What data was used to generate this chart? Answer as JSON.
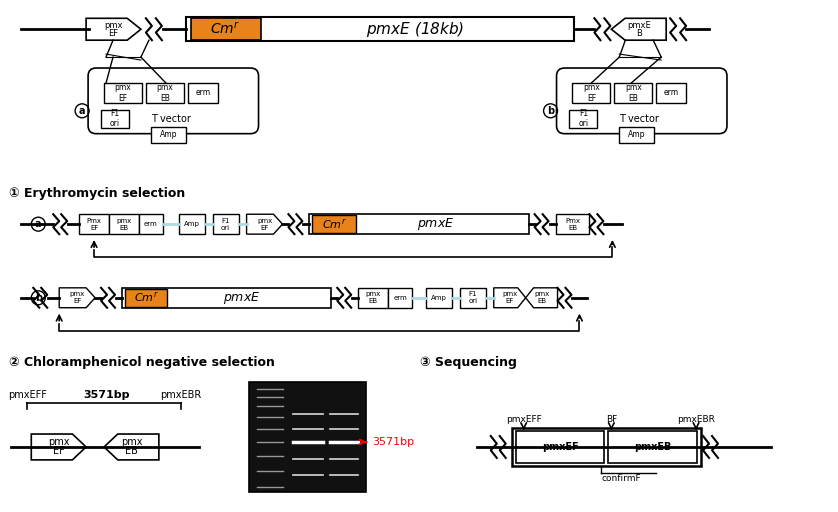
{
  "bg_color": "#ffffff",
  "orange_color": "#E8821A",
  "light_blue": "#ADD8E6",
  "black": "#000000",
  "red": "#FF0000",
  "title1": "① Erythromycin selection",
  "title2": "② Chloramphenicol negative selection",
  "title3": "③ Sequencing",
  "fig_width": 8.38,
  "fig_height": 5.12
}
